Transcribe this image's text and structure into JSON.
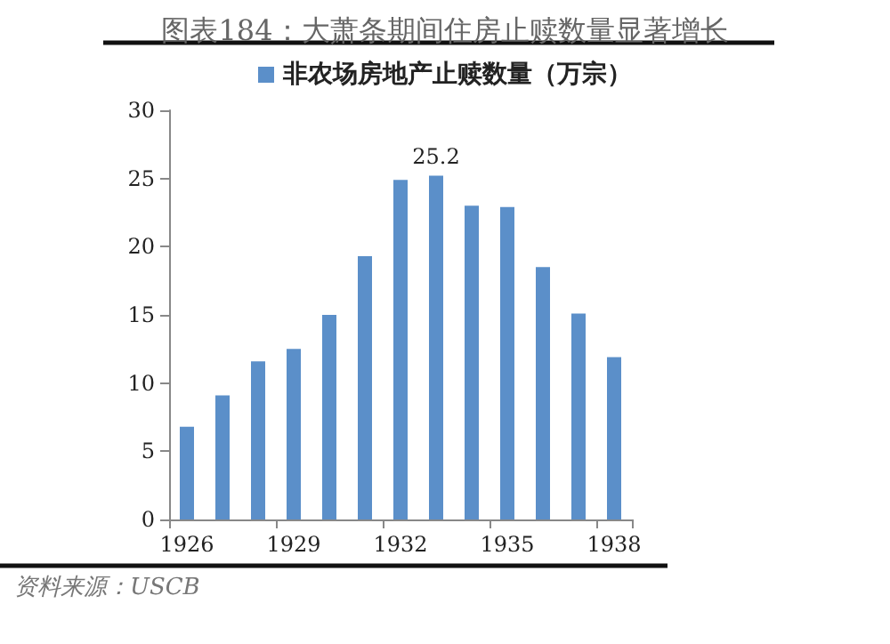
{
  "chart_data": {
    "type": "bar",
    "title": "图表184：大萧条期间住房止赎数量显著增长",
    "categories": [
      "1926",
      null,
      null,
      "1929",
      null,
      null,
      "1932",
      null,
      null,
      "1935",
      null,
      null,
      "1938"
    ],
    "series": [
      {
        "name": "非农场房地产止赎数量（万宗）",
        "color": "#5b8fc9",
        "values": [
          6.8,
          9.1,
          11.6,
          12.5,
          15.0,
          19.3,
          24.9,
          25.2,
          23.0,
          22.9,
          18.5,
          15.1,
          11.9
        ],
        "value_labels": [
          null,
          null,
          null,
          null,
          null,
          null,
          null,
          "25.2",
          null,
          null,
          null,
          null,
          null
        ]
      }
    ],
    "ylim": [
      0,
      30
    ],
    "yticks": [
      0,
      5,
      10,
      15,
      20,
      25,
      30
    ],
    "grid": false,
    "legend": "top",
    "annotations": [
      "资料来源：USCB"
    ]
  }
}
